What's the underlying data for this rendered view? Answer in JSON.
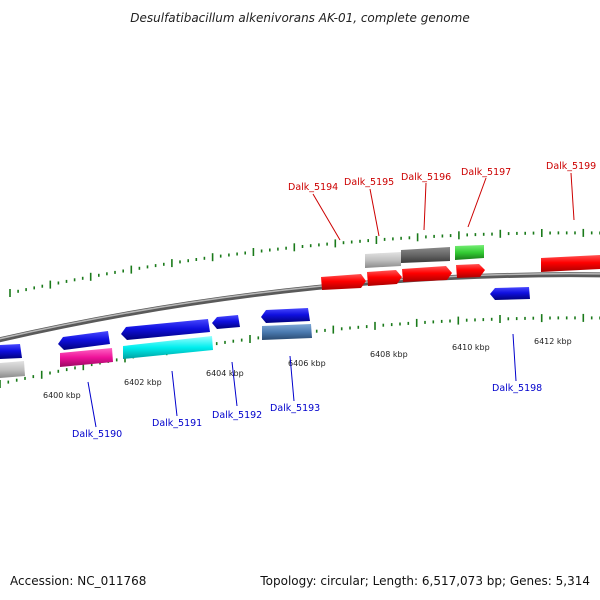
{
  "title": "Desulfatibacillum alkenivorans AK-01, complete genome",
  "footer": {
    "accession": "Accession: NC_011768",
    "summary": "Topology: circular; Length: 6,517,073 bp; Genes: 5,314"
  },
  "ticks": [
    "6400 kbp",
    "6402 kbp",
    "6404 kbp",
    "6406 kbp",
    "6408 kbp",
    "6410 kbp",
    "6412 kbp"
  ],
  "genes": [
    {
      "label": "Dalk_5190",
      "color": "#0000cc"
    },
    {
      "label": "Dalk_5191",
      "color": "#0000cc"
    },
    {
      "label": "Dalk_5192",
      "color": "#0000cc"
    },
    {
      "label": "Dalk_5193",
      "color": "#0000cc"
    },
    {
      "label": "Dalk_5194",
      "color": "#cc0000"
    },
    {
      "label": "Dalk_5195",
      "color": "#cc0000"
    },
    {
      "label": "Dalk_5196",
      "color": "#cc0000"
    },
    {
      "label": "Dalk_5197",
      "color": "#cc0000"
    },
    {
      "label": "Dalk_5198",
      "color": "#0000cc"
    },
    {
      "label": "Dalk_5199",
      "color": "#cc0000"
    }
  ],
  "colors": {
    "forward": "#ff0000",
    "reverse": "#1010e0",
    "backbone": "#808080",
    "tick": "#1a7a1a",
    "grey_light": "#c0c0c0",
    "grey_dark": "#6a6a6a",
    "green": "#33cc33",
    "magenta": "#ee1199",
    "cyan": "#00eeee",
    "steel": "#4a7ab0"
  }
}
